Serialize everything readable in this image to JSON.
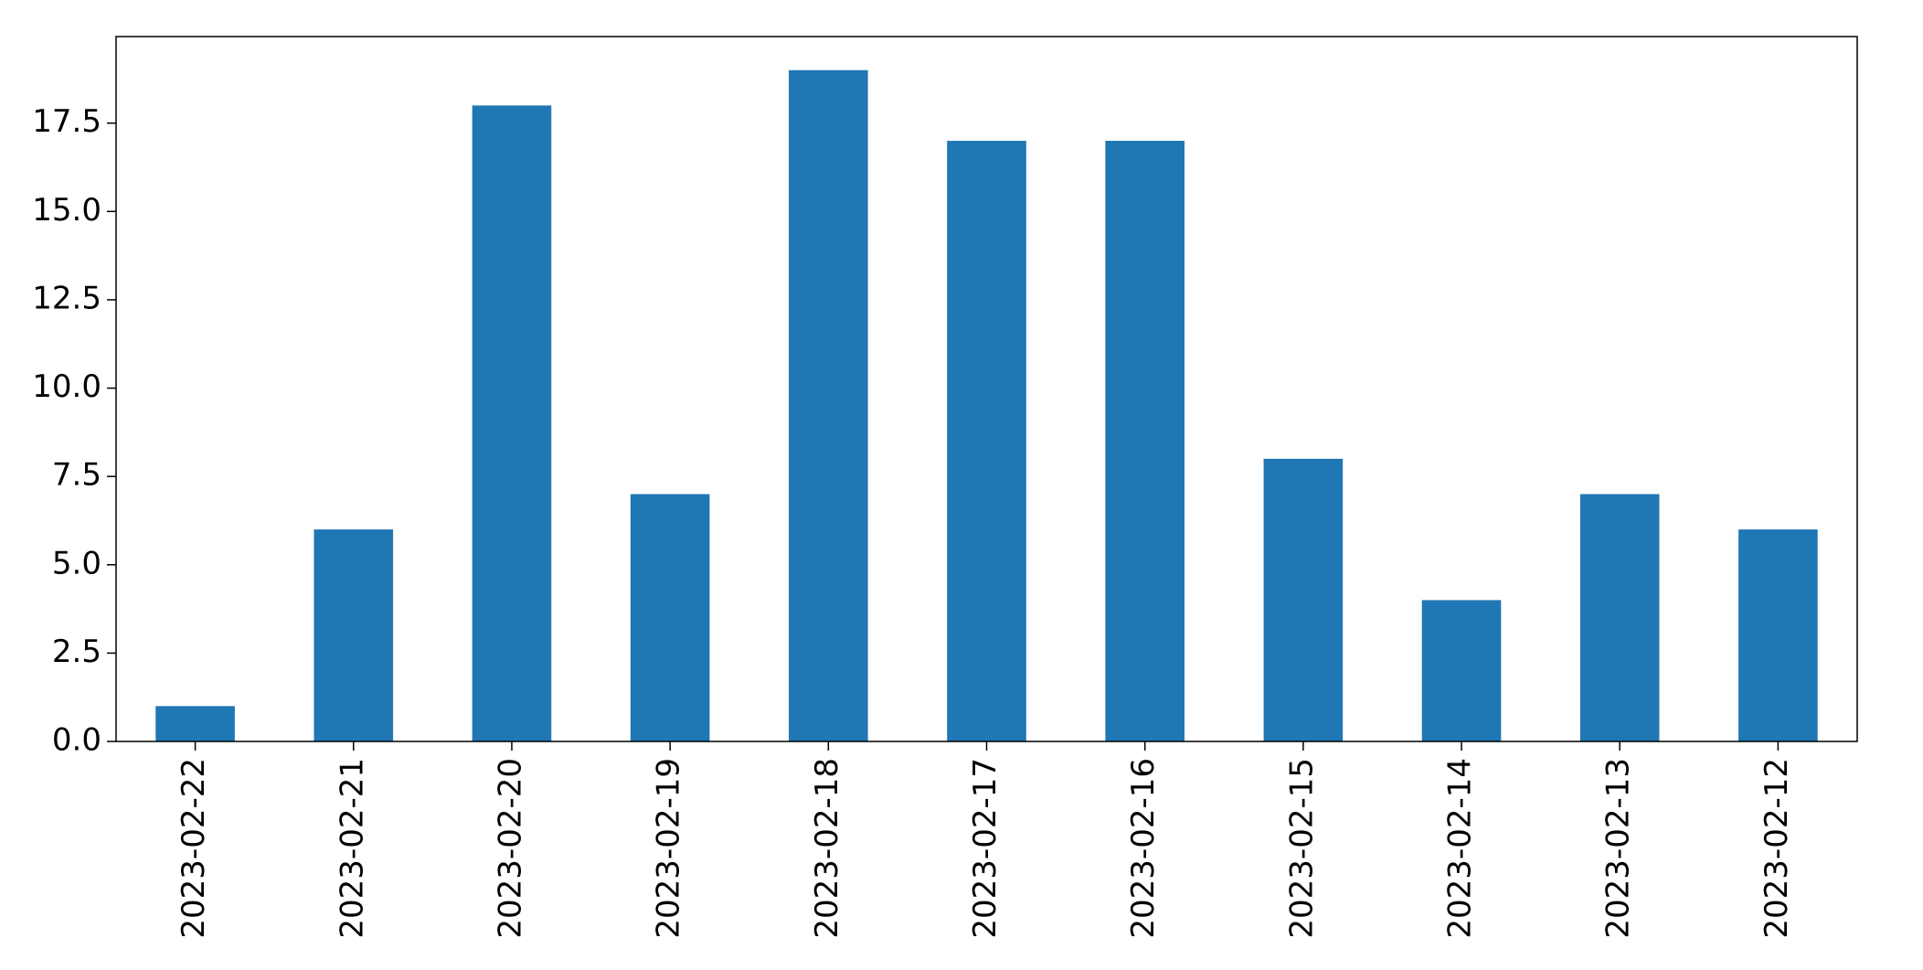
{
  "chart_data": {
    "type": "bar",
    "title": "",
    "xlabel": "",
    "ylabel": "",
    "categories": [
      "2023-02-22",
      "2023-02-21",
      "2023-02-20",
      "2023-02-19",
      "2023-02-18",
      "2023-02-17",
      "2023-02-16",
      "2023-02-15",
      "2023-02-14",
      "2023-02-13",
      "2023-02-12"
    ],
    "values": [
      1,
      6,
      18,
      7,
      19,
      17,
      17,
      8,
      4,
      7,
      6
    ],
    "ylim": [
      0,
      19.95
    ],
    "yticks": [
      0.0,
      2.5,
      5.0,
      7.5,
      10.0,
      12.5,
      15.0,
      17.5
    ],
    "ytick_labels": [
      "0.0",
      "2.5",
      "5.0",
      "7.5",
      "10.0",
      "12.5",
      "15.0",
      "17.5"
    ],
    "bar_color": "#1f77b4",
    "grid": false,
    "legend": "none"
  }
}
